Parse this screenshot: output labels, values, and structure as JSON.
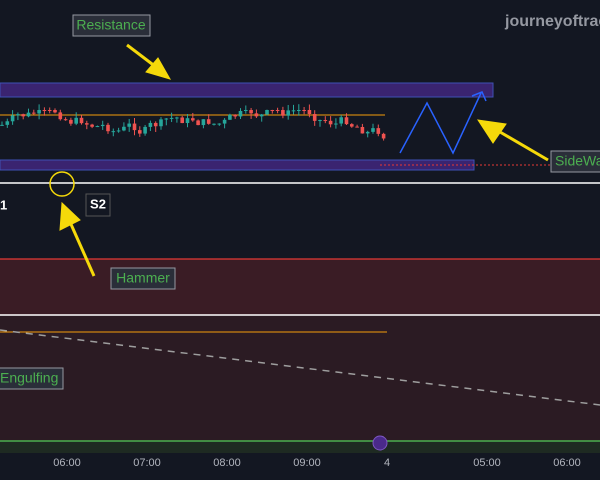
{
  "header": {
    "watermark": "journeyoftrac"
  },
  "annotations": {
    "resistance": "Resistance",
    "sideways": "SideWa",
    "s1": "1",
    "s2": "S2",
    "hammer": "Hammer",
    "engulfing": "Engulfing"
  },
  "time_axis": {
    "labels": [
      "06:00",
      "07:00",
      "08:00",
      "09:00",
      "4",
      "05:00",
      "06:00"
    ]
  }
}
